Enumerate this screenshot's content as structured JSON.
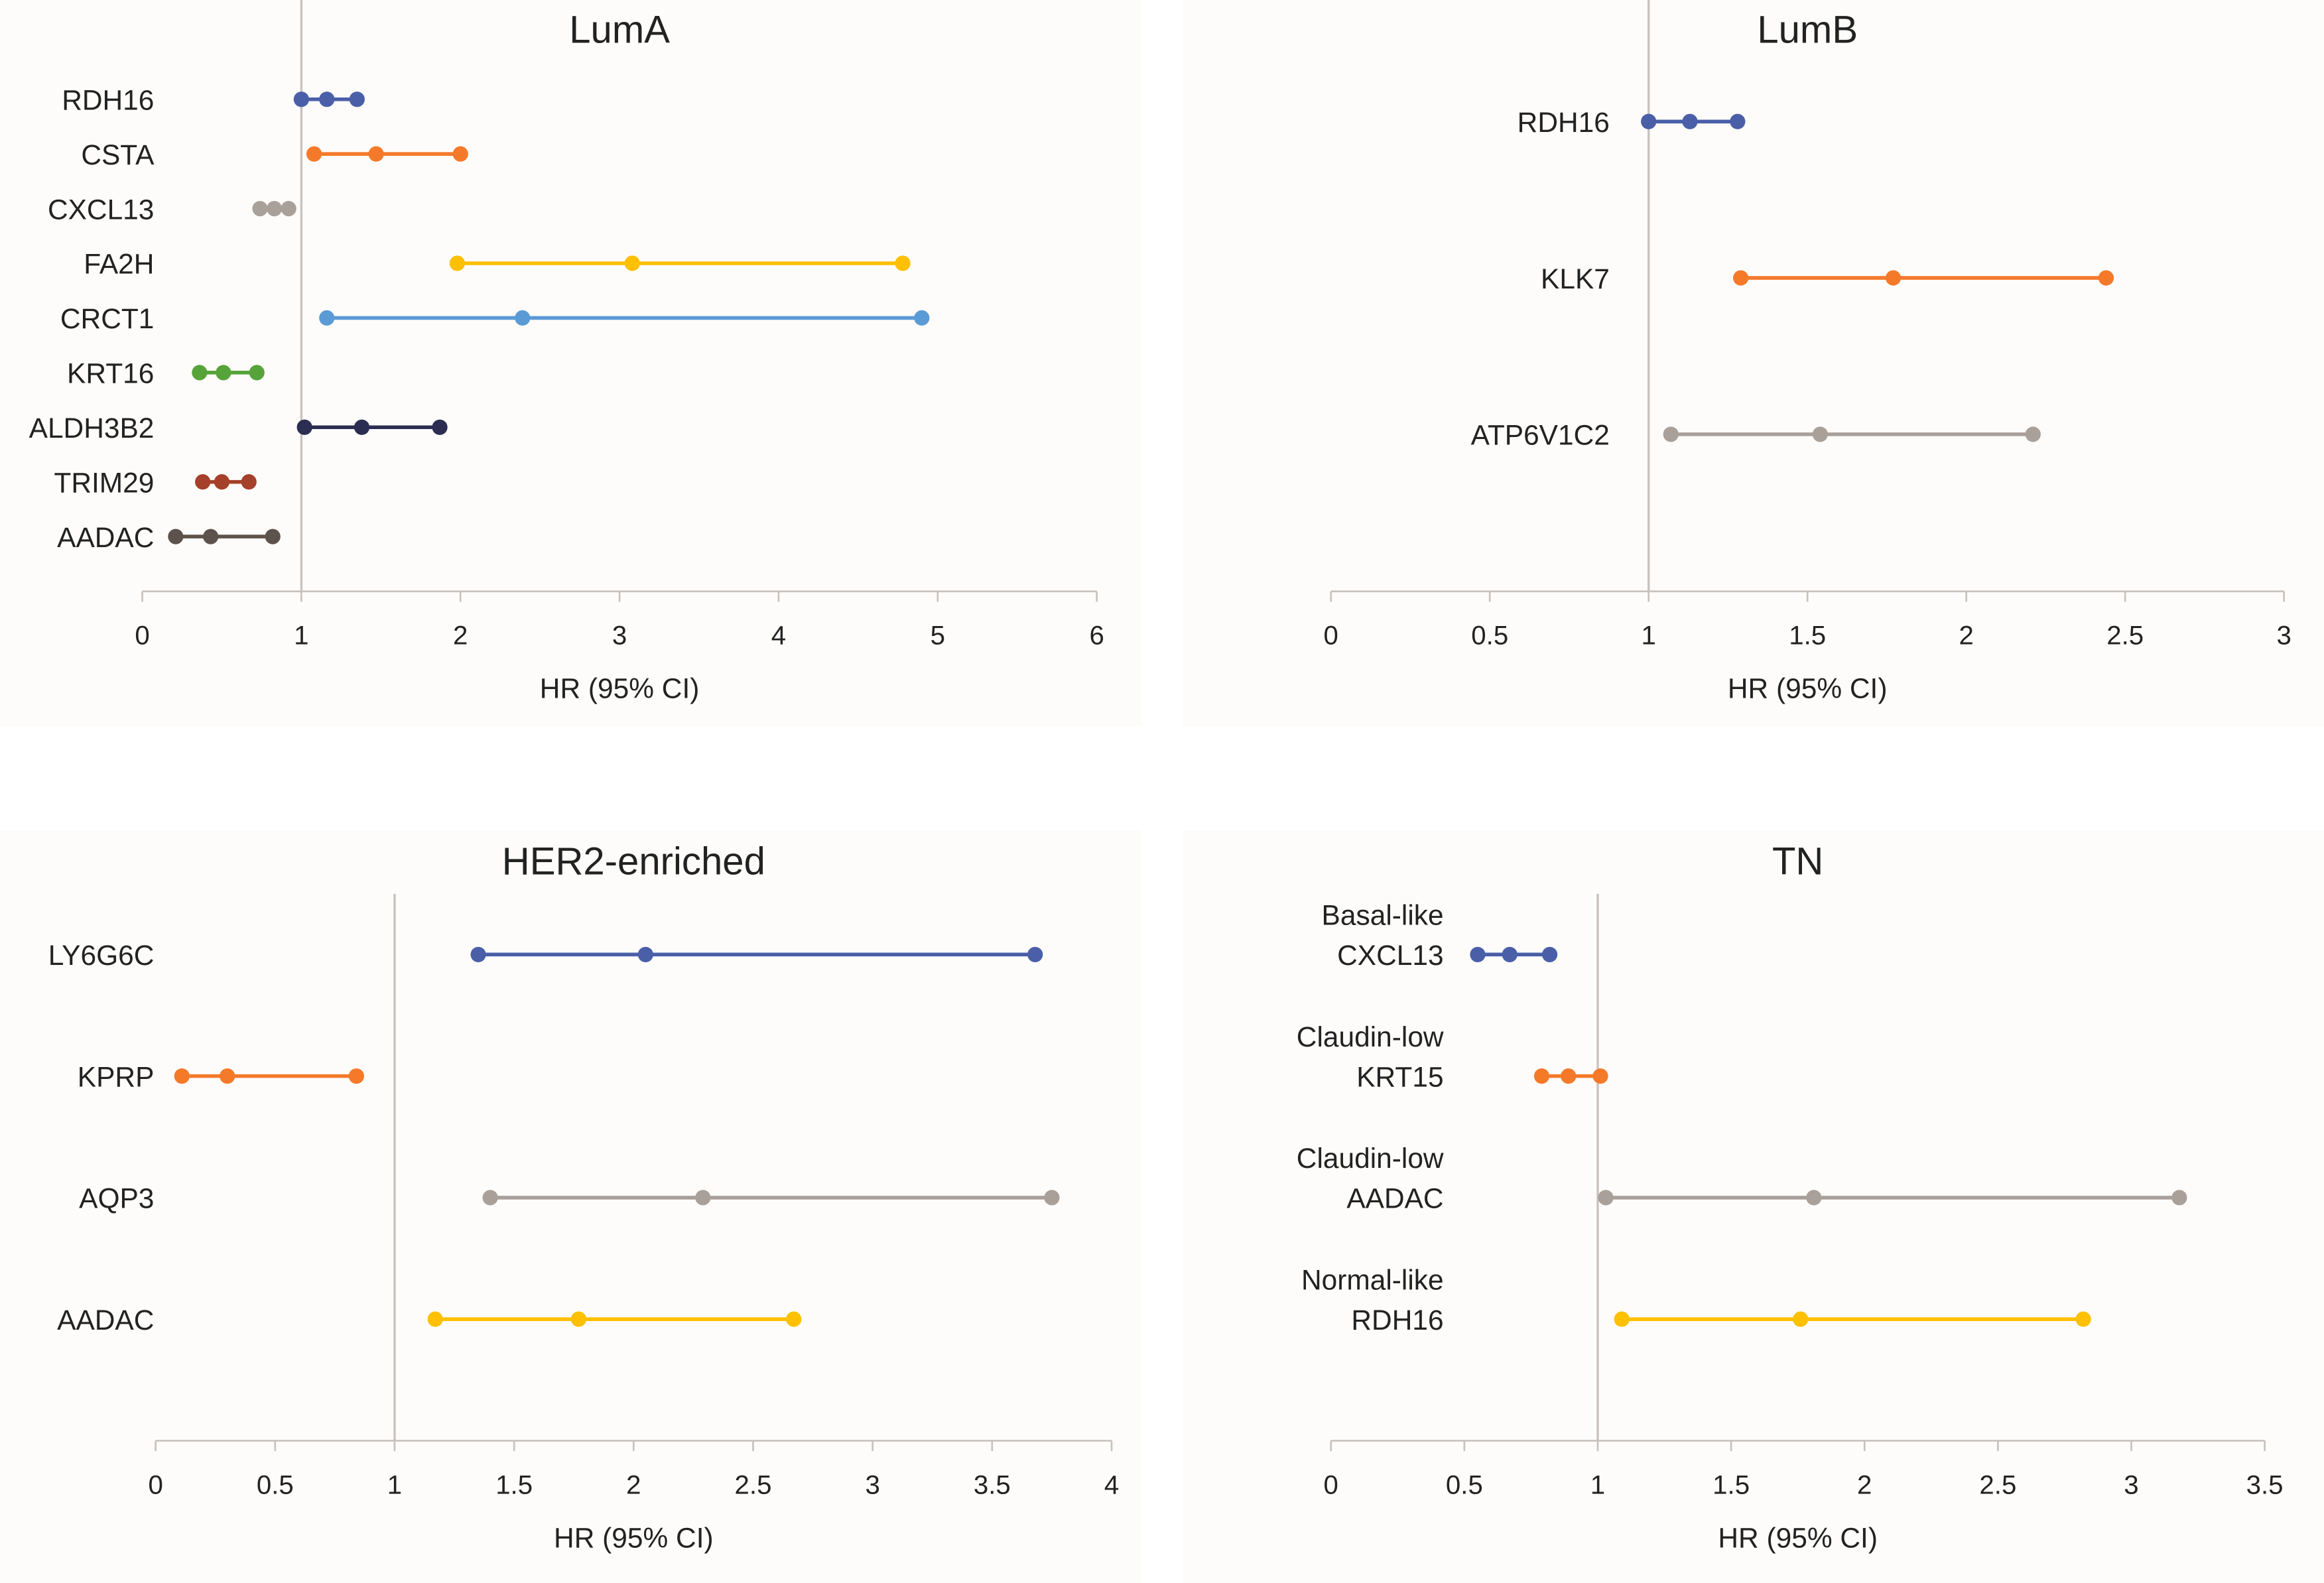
{
  "chart_data": [
    {
      "type": "forest",
      "title": "LumA",
      "xlabel": "HR (95% CI)",
      "categories": [
        "RDH16",
        "CSTA",
        "CXCL13",
        "FA2H",
        "CRCT1",
        "KRT16",
        "ALDH3B2",
        "TRIM29",
        "AADAC"
      ],
      "low": [
        1.0,
        1.08,
        0.74,
        1.98,
        1.16,
        0.36,
        1.02,
        0.38,
        0.21
      ],
      "hr": [
        1.16,
        1.47,
        0.83,
        3.08,
        2.39,
        0.51,
        1.38,
        0.5,
        0.43
      ],
      "high": [
        1.35,
        2.0,
        0.92,
        4.78,
        4.9,
        0.72,
        1.87,
        0.67,
        0.82
      ],
      "colors": [
        "#4a5fa8",
        "#f47a2a",
        "#a9a09a",
        "#ffc000",
        "#5b9bd5",
        "#56a33a",
        "#2b2d52",
        "#a5402a",
        "#5e534c"
      ],
      "reference": 1,
      "xlim": [
        0,
        6
      ],
      "xticks": [
        0,
        1,
        2,
        3,
        4,
        5,
        6
      ]
    },
    {
      "type": "forest",
      "title": "LumB",
      "xlabel": "HR (95% CI)",
      "categories": [
        "RDH16",
        "KLK7",
        "ATP6V1C2"
      ],
      "low": [
        1.0,
        1.29,
        1.07
      ],
      "hr": [
        1.13,
        1.77,
        1.54
      ],
      "high": [
        1.28,
        2.44,
        2.21
      ],
      "colors": [
        "#4a5fa8",
        "#f47a2a",
        "#a9a09a"
      ],
      "reference": 1,
      "xlim": [
        0,
        3
      ],
      "xticks": [
        0,
        0.5,
        1,
        1.5,
        2,
        2.5,
        3
      ]
    },
    {
      "type": "forest",
      "title": "HER2-enriched",
      "xlabel": "HR (95% CI)",
      "categories": [
        "LY6G6C",
        "KPRP",
        "AQP3",
        "AADAC"
      ],
      "low": [
        1.35,
        0.11,
        1.4,
        1.17
      ],
      "hr": [
        2.05,
        0.3,
        2.29,
        1.77
      ],
      "high": [
        3.68,
        0.84,
        3.75,
        2.67
      ],
      "colors": [
        "#4a5fa8",
        "#f47a2a",
        "#a9a09a",
        "#ffc000"
      ],
      "reference": 1,
      "xlim": [
        0,
        4
      ],
      "xticks": [
        0,
        0.5,
        1,
        1.5,
        2,
        2.5,
        3,
        3.5,
        4
      ]
    },
    {
      "type": "forest",
      "title": "TN",
      "xlabel": "HR (95% CI)",
      "groups": [
        "Basal-like",
        "Claudin-low",
        "Claudin-low",
        "Normal-like"
      ],
      "categories": [
        "CXCL13",
        "KRT15",
        "AADAC",
        "RDH16"
      ],
      "low": [
        0.55,
        0.79,
        1.03,
        1.09
      ],
      "hr": [
        0.67,
        0.89,
        1.81,
        1.76
      ],
      "high": [
        0.82,
        1.01,
        3.18,
        2.82
      ],
      "colors": [
        "#4a5fa8",
        "#f47a2a",
        "#a9a09a",
        "#ffc000"
      ],
      "reference": 1,
      "xlim": [
        0,
        3.5
      ],
      "xticks": [
        0,
        0.5,
        1,
        1.5,
        2,
        2.5,
        3,
        3.5
      ]
    }
  ]
}
